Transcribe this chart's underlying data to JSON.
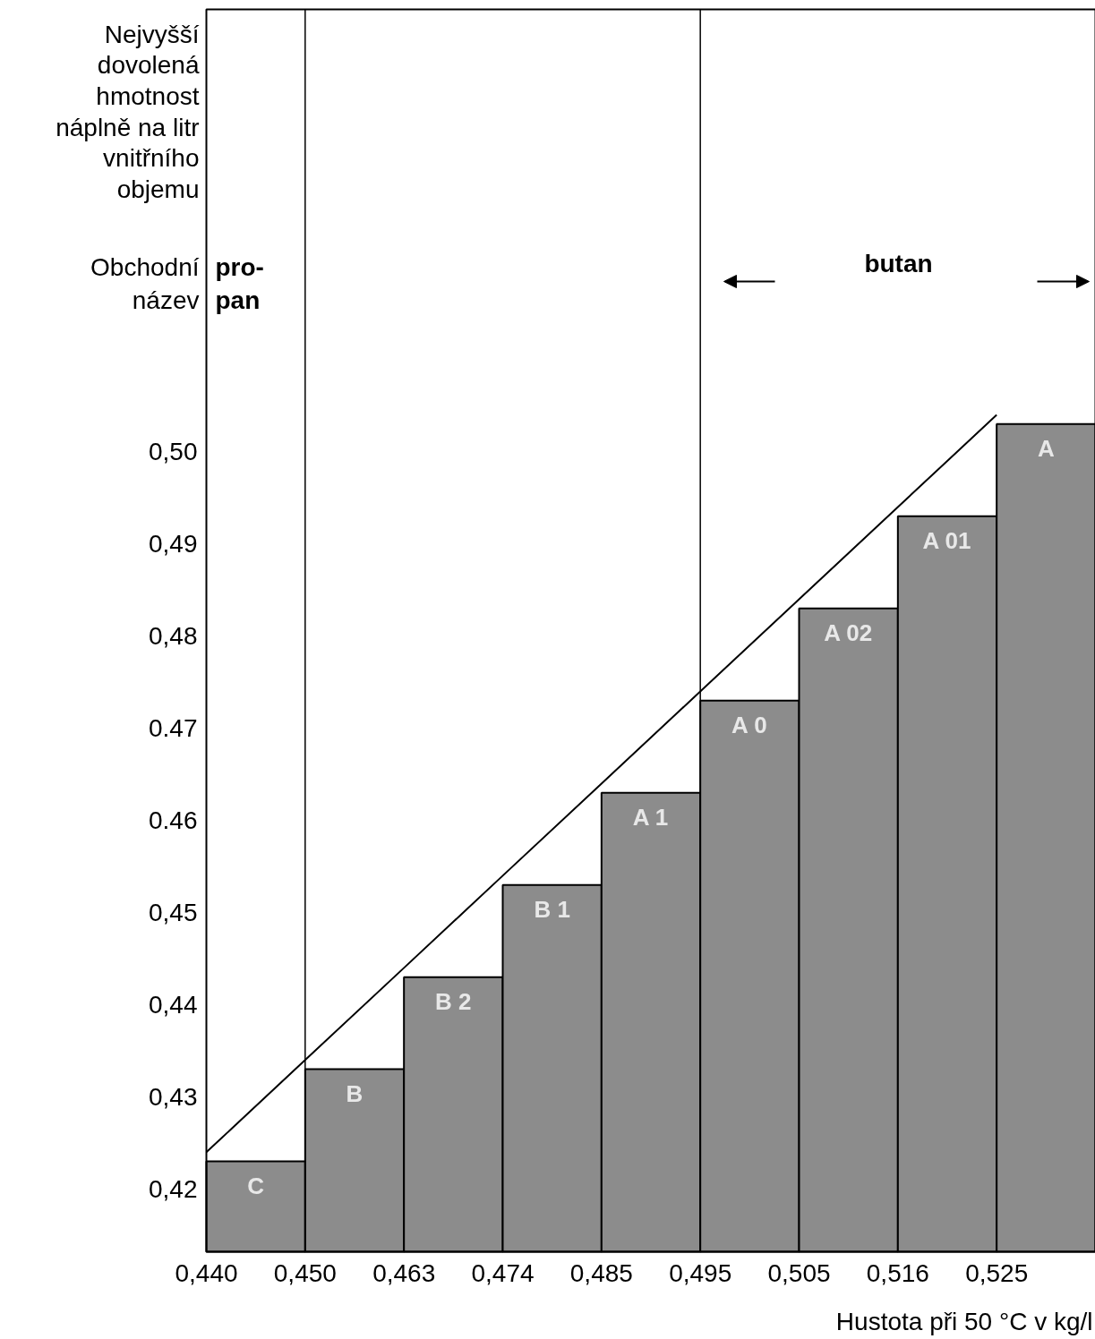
{
  "chart_data": {
    "type": "bar",
    "ylabel": "Nejvyšší\ndovolená\nhmotnost\nnáplně na litr\nvnitřního\nobjemu",
    "xlabel": "Hustota při 50 °C v kg/l",
    "categories": [
      "0,440",
      "0,450",
      "0,463",
      "0,474",
      "0,485",
      "0,495",
      "0,505",
      "0,516",
      "0,525"
    ],
    "values": [
      0.423,
      0.433,
      0.443,
      0.453,
      0.463,
      0.473,
      0.483,
      0.493,
      0.503
    ],
    "color": "#8c8c8c",
    "series": [
      {
        "type": "line",
        "color": "#000000",
        "values": [
          0.424,
          0.434,
          0.444,
          0.454,
          0.464,
          0.474,
          0.484,
          0.494,
          0.504
        ]
      }
    ],
    "ylim": [
      0.4132,
      0.548
    ],
    "yticks": [
      {
        "value": 0.42,
        "label": "0,42"
      },
      {
        "value": 0.43,
        "label": "0,43"
      },
      {
        "value": 0.44,
        "label": "0,44"
      },
      {
        "value": 0.45,
        "label": "0,45"
      },
      {
        "value": 0.46,
        "label": "0.46"
      },
      {
        "value": 0.47,
        "label": "0.47"
      },
      {
        "value": 0.48,
        "label": "0,48"
      },
      {
        "value": 0.49,
        "label": "0,49"
      },
      {
        "value": 0.5,
        "label": "0,50"
      }
    ],
    "ref_lines": [
      {
        "axis": "x",
        "value": "0,450"
      },
      {
        "axis": "x",
        "value": "0,495"
      }
    ],
    "annotations": [
      "Obchodní\nnázev",
      "pro-\npan",
      "butan",
      {
        "text": "C",
        "x": "0,440",
        "y": 0.423
      },
      {
        "text": "B",
        "x": "0,450",
        "y": 0.433
      },
      {
        "text": "B 2",
        "x": "0,463",
        "y": 0.443
      },
      {
        "text": "B 1",
        "x": "0,474",
        "y": 0.453
      },
      {
        "text": "A 1",
        "x": "0,485",
        "y": 0.463
      },
      {
        "text": "A 0",
        "x": "0,495",
        "y": 0.473
      },
      {
        "text": "A 02",
        "x": "0,505",
        "y": 0.483
      },
      {
        "text": "A 01",
        "x": "0,516",
        "y": 0.493
      },
      {
        "text": "A",
        "x": "0,525",
        "y": 0.503
      }
    ],
    "grid": false
  }
}
